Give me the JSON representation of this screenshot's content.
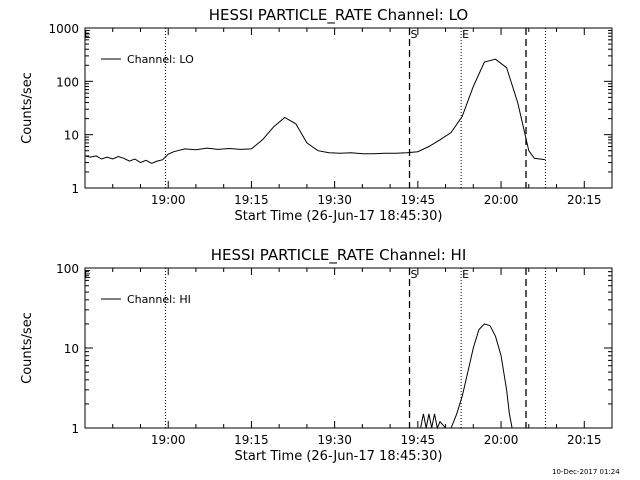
{
  "footer_timestamp": "10-Dec-2017 01:24",
  "chart_data": [
    {
      "type": "line",
      "title": "HESSI PARTICLE_RATE Channel: LO",
      "xlabel": "Start Time (26-Jun-17 18:45:30)",
      "ylabel": "Counts/sec",
      "yscale": "log",
      "ylim": [
        1,
        1000
      ],
      "xlim_minutes": [
        0,
        95
      ],
      "x_ticks": [
        {
          "min": 15,
          "label": "19:00"
        },
        {
          "min": 30,
          "label": "19:15"
        },
        {
          "min": 45,
          "label": "19:30"
        },
        {
          "min": 60,
          "label": "19:45"
        },
        {
          "min": 75,
          "label": "20:00"
        },
        {
          "min": 90,
          "label": "20:15"
        }
      ],
      "y_ticks": [
        {
          "v": 1,
          "label": "1"
        },
        {
          "v": 10,
          "label": "10"
        },
        {
          "v": 100,
          "label": "100"
        },
        {
          "v": 1000,
          "label": "1000"
        }
      ],
      "legend": {
        "label": "Channel: LO",
        "placement": "top-left"
      },
      "markers": [
        {
          "min": 14.5,
          "style": "dotted",
          "label": ""
        },
        {
          "min": 58.5,
          "style": "dashed",
          "label": "S"
        },
        {
          "min": 67.8,
          "style": "dotted",
          "label": "E"
        },
        {
          "min": 79.5,
          "style": "dashed",
          "label": ""
        },
        {
          "min": 83.0,
          "style": "dotted",
          "label": ""
        }
      ],
      "corner_labels": [
        "E"
      ],
      "series": [
        {
          "x": [
            0,
            1,
            2,
            3,
            4,
            5,
            6,
            7,
            8,
            9,
            10,
            11,
            12,
            13,
            14,
            15,
            16,
            18,
            20,
            22,
            24,
            26,
            28,
            30,
            32,
            34,
            36,
            38,
            40,
            42,
            44,
            46,
            48,
            50,
            52,
            54,
            56,
            58,
            60,
            62,
            64,
            66,
            68,
            70,
            72,
            74,
            76,
            78,
            80,
            81,
            82,
            83
          ],
          "y": [
            4,
            3.8,
            4,
            3.5,
            3.8,
            3.5,
            3.9,
            3.6,
            3.2,
            3.5,
            3.0,
            3.3,
            2.9,
            3.2,
            3.4,
            4.3,
            4.8,
            5.4,
            5.2,
            5.6,
            5.3,
            5.5,
            5.3,
            5.4,
            8,
            14,
            21,
            16,
            7,
            5,
            4.6,
            4.5,
            4.6,
            4.4,
            4.4,
            4.5,
            4.5,
            4.6,
            4.8,
            6,
            8,
            11,
            22,
            80,
            230,
            260,
            180,
            40,
            5,
            3.6,
            3.5,
            3.4
          ]
        }
      ]
    },
    {
      "type": "line",
      "title": "HESSI PARTICLE_RATE Channel: HI",
      "xlabel": "Start Time (26-Jun-17 18:45:30)",
      "ylabel": "Counts/sec",
      "yscale": "log",
      "ylim": [
        1,
        100
      ],
      "xlim_minutes": [
        0,
        95
      ],
      "x_ticks": [
        {
          "min": 15,
          "label": "19:00"
        },
        {
          "min": 30,
          "label": "19:15"
        },
        {
          "min": 45,
          "label": "19:30"
        },
        {
          "min": 60,
          "label": "19:45"
        },
        {
          "min": 75,
          "label": "20:00"
        },
        {
          "min": 90,
          "label": "20:15"
        }
      ],
      "y_ticks": [
        {
          "v": 1,
          "label": "1"
        },
        {
          "v": 10,
          "label": "10"
        },
        {
          "v": 100,
          "label": "100"
        }
      ],
      "legend": {
        "label": "Channel: HI",
        "placement": "top-left"
      },
      "markers": [
        {
          "min": 14.5,
          "style": "dotted",
          "label": ""
        },
        {
          "min": 58.5,
          "style": "dashed",
          "label": "S"
        },
        {
          "min": 67.8,
          "style": "dotted",
          "label": "E"
        },
        {
          "min": 79.5,
          "style": "dashed",
          "label": ""
        },
        {
          "min": 83.0,
          "style": "dotted",
          "label": ""
        }
      ],
      "corner_labels": [
        "E"
      ],
      "series": [
        {
          "x": [
            60.5,
            61,
            61.5,
            62,
            62.5,
            63,
            63.5,
            64,
            65,
            66,
            67,
            68,
            69,
            70,
            71,
            72,
            73,
            74,
            75,
            76,
            76.5,
            77
          ],
          "y": [
            1.0,
            1.5,
            1.0,
            1.5,
            1.0,
            1.5,
            1.0,
            1.2,
            1.0,
            1.0,
            1.5,
            2.5,
            5,
            10,
            17,
            20,
            19,
            14,
            8,
            3,
            1.5,
            1.0
          ]
        }
      ]
    }
  ]
}
